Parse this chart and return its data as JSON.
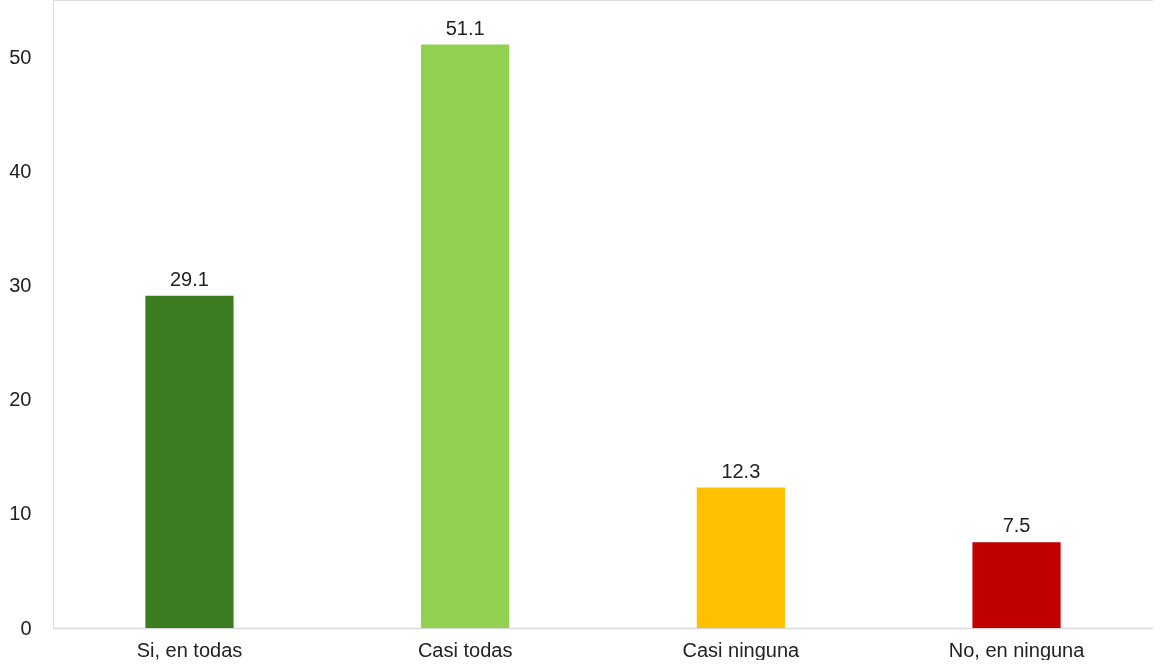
{
  "chart_data": {
    "type": "bar",
    "categories": [
      "Si, en todas",
      "Casi todas",
      "Casi ninguna",
      "No, en ninguna"
    ],
    "values": [
      29.1,
      51.1,
      12.3,
      7.5
    ],
    "colors": [
      "#3c7d22",
      "#92d050",
      "#ffc000",
      "#c00000"
    ],
    "ylim": [
      0,
      55
    ],
    "yticks": [
      0,
      10,
      20,
      30,
      40,
      50
    ],
    "data_labels": true
  }
}
